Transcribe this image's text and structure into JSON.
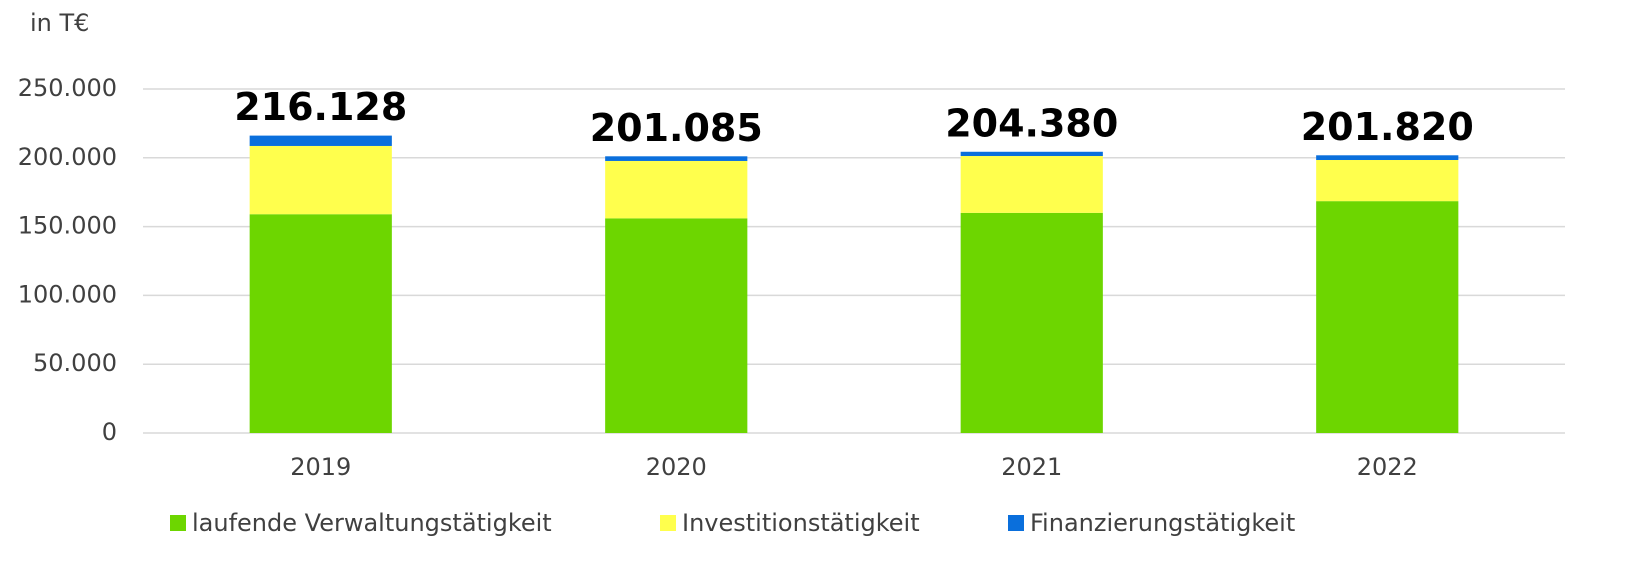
{
  "chart_data": {
    "type": "stacked_bar",
    "y_label": "in T€",
    "categories": [
      "2019",
      "2020",
      "2021",
      "2022"
    ],
    "series": [
      {
        "name": "laufende Verwaltungstätigkeit",
        "color": "#6dd600",
        "values": [
          159000,
          156000,
          160000,
          168500
        ]
      },
      {
        "name": "Investitionstätigkeit",
        "color": "#ffff4d",
        "values": [
          49600,
          41700,
          41300,
          29900
        ]
      },
      {
        "name": "Finanzierungstätigkeit",
        "color": "#0a6fdc",
        "values": [
          7528,
          3385,
          3080,
          3420
        ]
      }
    ],
    "totals": [
      {
        "value": 216128,
        "label": "216.128"
      },
      {
        "value": 201085,
        "label": "201.085"
      },
      {
        "value": 204380,
        "label": "204.380"
      },
      {
        "value": 201820,
        "label": "201.820"
      }
    ],
    "ylim": [
      0,
      250000
    ],
    "yticks": [
      0,
      {
        "value": 50000,
        "label": "50.000"
      },
      {
        "value": 100000,
        "label": "100.000"
      },
      {
        "value": 150000,
        "label": "150.000"
      },
      {
        "value": 200000,
        "label": "200.000"
      },
      {
        "value": 250000,
        "label": "250.000"
      }
    ],
    "grid": true,
    "legend": "bottom"
  }
}
